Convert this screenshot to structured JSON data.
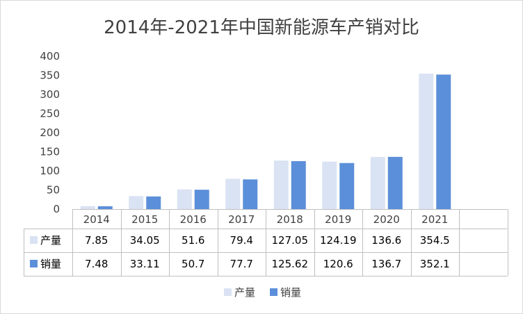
{
  "chart_data": {
    "type": "bar",
    "title": "2014年-2021年中国新能源车产销对比",
    "categories": [
      "2014",
      "2015",
      "2016",
      "2017",
      "2018",
      "2019",
      "2020",
      "2021"
    ],
    "series": [
      {
        "name": "产量",
        "color": "#dae3f3",
        "values": [
          7.85,
          34.05,
          51.6,
          79.4,
          127.05,
          124.19,
          136.6,
          354.5
        ]
      },
      {
        "name": "销量",
        "color": "#5b8fd9",
        "values": [
          7.48,
          33.11,
          50.7,
          77.7,
          125.62,
          120.6,
          136.7,
          352.1
        ]
      }
    ],
    "ylim": [
      0,
      400
    ],
    "yticks": [
      0,
      50,
      100,
      150,
      200,
      250,
      300,
      350,
      400
    ],
    "grid": false,
    "legend": "bottom",
    "data_table": true
  }
}
